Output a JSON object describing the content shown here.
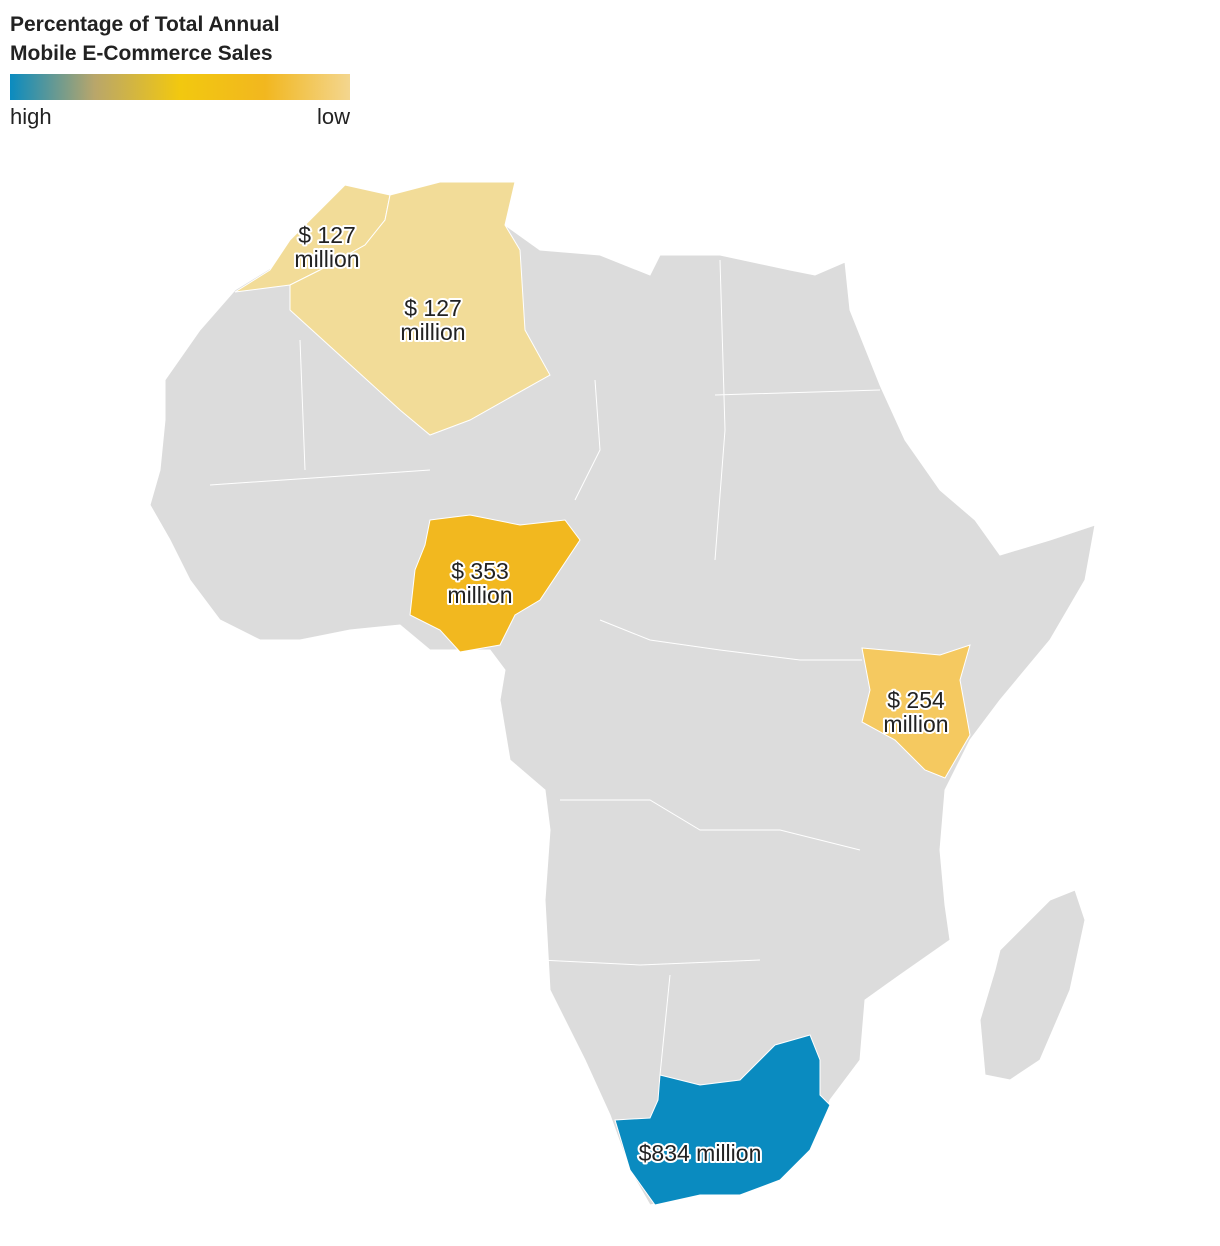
{
  "legend": {
    "title_lines": [
      "Percentage of Total Annual",
      "Mobile E-Commerce Sales"
    ],
    "high_label": "high",
    "low_label": "low",
    "gradient_colors": [
      "#0a8bc0",
      "#b9a66a",
      "#f2c80f",
      "#f2b71f",
      "#f3d68f"
    ]
  },
  "regions": [
    {
      "label_lines": [
        "$ 127",
        "million"
      ],
      "color": "#f2dc98"
    },
    {
      "label_lines": [
        "$ 127",
        "million"
      ],
      "color": "#f2dc98"
    },
    {
      "label_lines": [
        "$ 353",
        "million"
      ],
      "color": "#f2b81f"
    },
    {
      "label_lines": [
        "$ 254",
        "million"
      ],
      "color": "#f5c960"
    },
    {
      "label_lines": [
        "$834 million"
      ],
      "color": "#0a8bc0"
    }
  ]
}
